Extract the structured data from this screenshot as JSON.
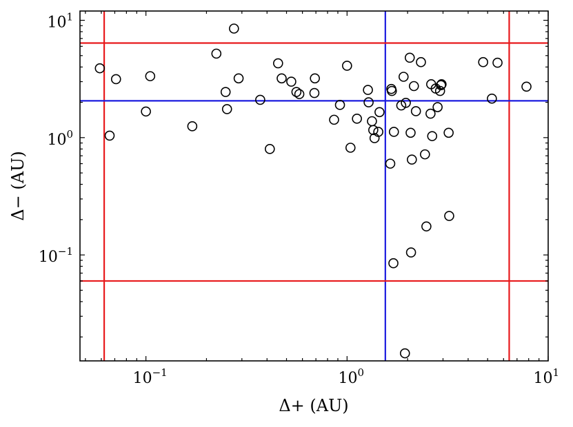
{
  "chart_data": {
    "type": "scatter",
    "xlabel": "Δ+ (AU)",
    "ylabel": "Δ− (AU)",
    "xscale": "log",
    "yscale": "log",
    "xlim": [
      0.047,
      10
    ],
    "ylim": [
      0.0125,
      12
    ],
    "grid": false,
    "x_ticks": [
      {
        "value": 0.1,
        "base": "10",
        "exp": "−1"
      },
      {
        "value": 1,
        "base": "10",
        "exp": "0"
      },
      {
        "value": 10,
        "base": "10",
        "exp": "1"
      }
    ],
    "y_ticks": [
      {
        "value": 0.1,
        "base": "10",
        "exp": "−1"
      },
      {
        "value": 1,
        "base": "10",
        "exp": "0"
      },
      {
        "value": 10,
        "base": "10",
        "exp": "1"
      }
    ],
    "marker": {
      "shape": "open-circle",
      "color": "#000000"
    },
    "reference_lines": {
      "red_color": "#e8191b",
      "blue_color": "#1b1bdf",
      "vertical": [
        {
          "x": 0.062,
          "color": "red"
        },
        {
          "x": 1.55,
          "color": "blue"
        },
        {
          "x": 6.4,
          "color": "red"
        }
      ],
      "horizontal": [
        {
          "y": 6.4,
          "color": "red"
        },
        {
          "y": 2.06,
          "color": "blue"
        },
        {
          "y": 0.06,
          "color": "red"
        }
      ]
    },
    "points": [
      {
        "x": 0.059,
        "y": 3.9
      },
      {
        "x": 0.066,
        "y": 1.04
      },
      {
        "x": 0.071,
        "y": 3.15
      },
      {
        "x": 0.1,
        "y": 1.67
      },
      {
        "x": 0.105,
        "y": 3.34
      },
      {
        "x": 0.17,
        "y": 1.25
      },
      {
        "x": 0.224,
        "y": 5.2
      },
      {
        "x": 0.249,
        "y": 2.45
      },
      {
        "x": 0.253,
        "y": 1.75
      },
      {
        "x": 0.274,
        "y": 8.5
      },
      {
        "x": 0.289,
        "y": 3.2
      },
      {
        "x": 0.37,
        "y": 2.1
      },
      {
        "x": 0.413,
        "y": 0.8
      },
      {
        "x": 0.454,
        "y": 4.3
      },
      {
        "x": 0.473,
        "y": 3.2
      },
      {
        "x": 0.528,
        "y": 3.0
      },
      {
        "x": 0.56,
        "y": 2.45
      },
      {
        "x": 0.579,
        "y": 2.35
      },
      {
        "x": 0.688,
        "y": 2.4
      },
      {
        "x": 0.692,
        "y": 3.2
      },
      {
        "x": 0.862,
        "y": 1.42
      },
      {
        "x": 0.922,
        "y": 1.9
      },
      {
        "x": 1.0,
        "y": 4.1
      },
      {
        "x": 1.04,
        "y": 0.82
      },
      {
        "x": 1.12,
        "y": 1.45
      },
      {
        "x": 1.27,
        "y": 2.55
      },
      {
        "x": 1.28,
        "y": 2.0
      },
      {
        "x": 1.33,
        "y": 1.38
      },
      {
        "x": 1.35,
        "y": 1.16
      },
      {
        "x": 1.37,
        "y": 0.99
      },
      {
        "x": 1.43,
        "y": 1.12
      },
      {
        "x": 1.45,
        "y": 1.65
      },
      {
        "x": 1.64,
        "y": 0.6
      },
      {
        "x": 1.66,
        "y": 2.6
      },
      {
        "x": 1.67,
        "y": 2.5
      },
      {
        "x": 1.7,
        "y": 0.085
      },
      {
        "x": 1.71,
        "y": 1.12
      },
      {
        "x": 1.86,
        "y": 1.88
      },
      {
        "x": 1.91,
        "y": 3.3
      },
      {
        "x": 1.94,
        "y": 0.0145
      },
      {
        "x": 1.96,
        "y": 1.98
      },
      {
        "x": 2.05,
        "y": 4.8
      },
      {
        "x": 2.07,
        "y": 1.1
      },
      {
        "x": 2.08,
        "y": 0.105
      },
      {
        "x": 2.1,
        "y": 0.65
      },
      {
        "x": 2.15,
        "y": 2.75
      },
      {
        "x": 2.2,
        "y": 1.68
      },
      {
        "x": 2.33,
        "y": 4.4
      },
      {
        "x": 2.44,
        "y": 0.72
      },
      {
        "x": 2.48,
        "y": 0.175
      },
      {
        "x": 2.6,
        "y": 1.6
      },
      {
        "x": 2.62,
        "y": 2.85
      },
      {
        "x": 2.65,
        "y": 1.03
      },
      {
        "x": 2.76,
        "y": 2.62
      },
      {
        "x": 2.82,
        "y": 1.82
      },
      {
        "x": 2.9,
        "y": 2.5
      },
      {
        "x": 2.93,
        "y": 2.8
      },
      {
        "x": 2.95,
        "y": 2.85
      },
      {
        "x": 3.2,
        "y": 1.1
      },
      {
        "x": 3.22,
        "y": 0.215
      },
      {
        "x": 4.75,
        "y": 4.4
      },
      {
        "x": 5.25,
        "y": 2.15
      },
      {
        "x": 5.6,
        "y": 4.35
      },
      {
        "x": 7.8,
        "y": 2.72
      }
    ]
  }
}
